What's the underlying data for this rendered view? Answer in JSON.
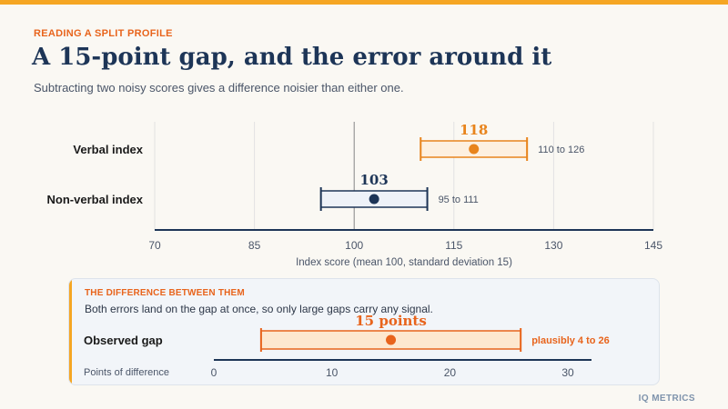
{
  "header": {
    "kicker": "READING A SPLIT PROFILE",
    "title": "A 15-point gap, and the error around it",
    "subtitle": "Subtracting two noisy scores gives a difference noisier than either one."
  },
  "chart_data": [
    {
      "type": "interval",
      "xlabel": "Index score (mean 100, standard deviation 15)",
      "xlim": [
        70,
        145
      ],
      "xticks": [
        70,
        85,
        100,
        115,
        130,
        145
      ],
      "reference_line": 100,
      "grid": true,
      "rows": [
        {
          "label": "Verbal index",
          "value": 118,
          "low": 110,
          "high": 126,
          "range_label": "110 to 126",
          "color": "#e8841c",
          "fill": "#fdf0e0"
        },
        {
          "label": "Non-verbal index",
          "value": 103,
          "low": 95,
          "high": 111,
          "range_label": "95 to 111",
          "color": "#1d3557",
          "fill": "#eef2f8"
        }
      ]
    },
    {
      "type": "interval",
      "xlabel": "Points of difference",
      "xlim": [
        0,
        32
      ],
      "xticks": [
        0,
        10,
        20,
        30
      ],
      "rows": [
        {
          "label": "Observed gap",
          "value": 15,
          "value_label": "15 points",
          "low": 4,
          "high": 26,
          "range_label": "plausibly 4 to 26",
          "color": "#e8641c",
          "fill": "#fde8cf"
        }
      ]
    }
  ],
  "panel": {
    "kicker": "THE DIFFERENCE BETWEEN THEM",
    "description": "Both errors land on the gap at once, so only large gaps carry any signal."
  },
  "footer": "IQ METRICS"
}
